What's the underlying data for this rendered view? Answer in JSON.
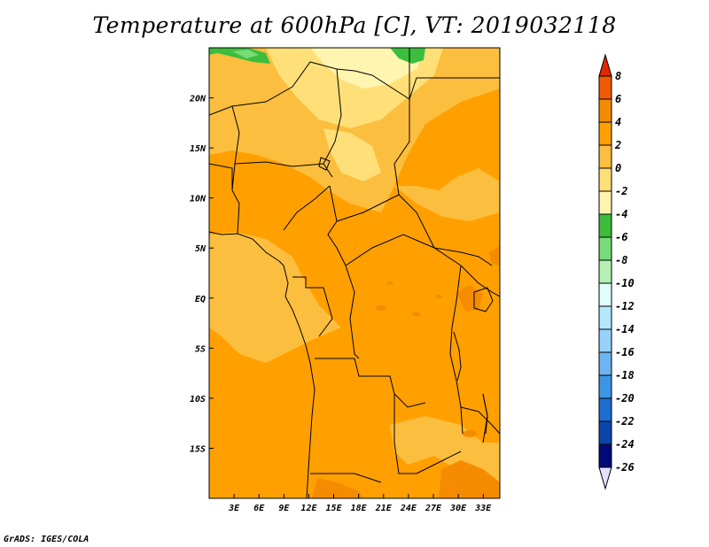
{
  "title": "Temperature at 600hPa [C], VT: 2019032118",
  "credit": "GrADS: IGES/COLA",
  "map": {
    "lon_range": [
      0,
      35
    ],
    "lat_range": [
      -20,
      25
    ],
    "lon_ticks": [
      {
        "value": 3,
        "label": "3E"
      },
      {
        "value": 6,
        "label": "6E"
      },
      {
        "value": 9,
        "label": "9E"
      },
      {
        "value": 12,
        "label": "12E"
      },
      {
        "value": 15,
        "label": "15E"
      },
      {
        "value": 18,
        "label": "18E"
      },
      {
        "value": 21,
        "label": "21E"
      },
      {
        "value": 24,
        "label": "24E"
      },
      {
        "value": 27,
        "label": "27E"
      },
      {
        "value": 30,
        "label": "30E"
      },
      {
        "value": 33,
        "label": "33E"
      }
    ],
    "lat_ticks": [
      {
        "value": 20,
        "label": "20N"
      },
      {
        "value": 15,
        "label": "15N"
      },
      {
        "value": 10,
        "label": "10N"
      },
      {
        "value": 5,
        "label": "5N"
      },
      {
        "value": 0,
        "label": "EQ"
      },
      {
        "value": -5,
        "label": "5S"
      },
      {
        "value": -10,
        "label": "10S"
      },
      {
        "value": -15,
        "label": "15S"
      }
    ]
  },
  "colorbar": {
    "levels": [
      "8",
      "6",
      "4",
      "2",
      "0",
      "-2",
      "-4",
      "-6",
      "-8",
      "-10",
      "-12",
      "-14",
      "-16",
      "-18",
      "-20",
      "-22",
      "-24",
      "-26"
    ],
    "colors": [
      "#e12800",
      "#f05a00",
      "#f58c00",
      "#ffa000",
      "#fcbe3e",
      "#ffe078",
      "#fff5b0",
      "#3cbe3c",
      "#78dc78",
      "#b4f0b4",
      "#e1ffff",
      "#b4e8ff",
      "#96d2fa",
      "#6eb4f0",
      "#3c96e6",
      "#1e6ed2",
      "#0a46aa",
      "#000a78",
      "#e1e1ff"
    ]
  }
}
